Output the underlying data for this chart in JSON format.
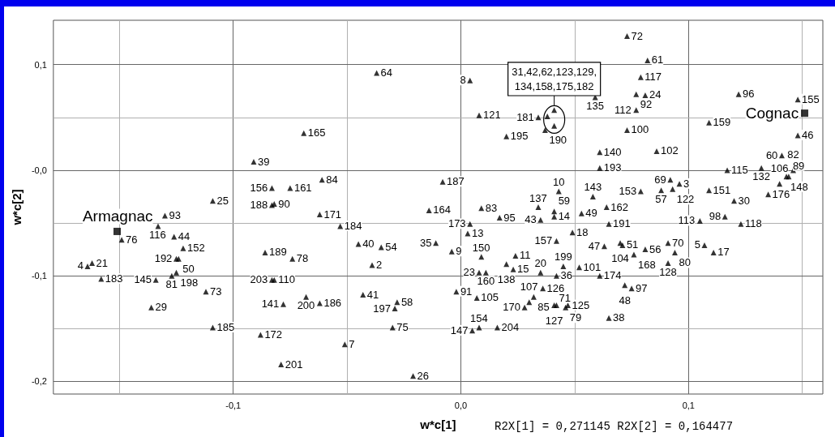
{
  "chart_data": {
    "type": "scatter",
    "xlabel": "w*c[1]",
    "ylabel": "w*c[2]",
    "annotations": [
      {
        "text": "31,42,62,123,129,\n134,158,175,182",
        "x": 0.041,
        "y": 0.048
      },
      "R2X[1] = 0,271145 R2X[2] = 0,164477",
      {
        "text": "Armagnac",
        "x": -0.151,
        "y": -0.058
      },
      {
        "text": "Cognac",
        "x": 0.151,
        "y": 0.054
      },
      {
        "text": "4",
        "x": -0.164,
        "y": -0.091
      },
      {
        "text": "21",
        "x": -0.162,
        "y": -0.088
      },
      {
        "text": "183",
        "x": -0.158,
        "y": -0.103
      },
      {
        "text": "76",
        "x": -0.149,
        "y": -0.066
      },
      {
        "text": "93",
        "x": -0.13,
        "y": -0.043
      },
      {
        "text": "116",
        "x": -0.133,
        "y": -0.053
      },
      {
        "text": "44",
        "x": -0.126,
        "y": -0.063
      },
      {
        "text": "152",
        "x": -0.122,
        "y": -0.074
      },
      {
        "text": "192",
        "x": -0.125,
        "y": -0.084
      },
      {
        "text": "50",
        "x": -0.124,
        "y": -0.084
      },
      {
        "text": "81",
        "x": -0.127,
        "y": -0.1
      },
      {
        "text": "198",
        "x": -0.125,
        "y": -0.097
      },
      {
        "text": "145",
        "x": -0.134,
        "y": -0.104
      },
      {
        "text": "29",
        "x": -0.136,
        "y": -0.13
      },
      {
        "text": "73",
        "x": -0.112,
        "y": -0.115
      },
      {
        "text": "185",
        "x": -0.109,
        "y": -0.149
      },
      {
        "text": "25",
        "x": -0.109,
        "y": -0.029
      },
      {
        "text": "39",
        "x": -0.091,
        "y": 0.008
      },
      {
        "text": "156",
        "x": -0.083,
        "y": -0.017
      },
      {
        "text": "161",
        "x": -0.075,
        "y": -0.017
      },
      {
        "text": "188",
        "x": -0.083,
        "y": -0.033
      },
      {
        "text": "90",
        "x": -0.082,
        "y": -0.032
      },
      {
        "text": "165",
        "x": -0.069,
        "y": 0.035
      },
      {
        "text": "84",
        "x": -0.061,
        "y": -0.009
      },
      {
        "text": "171",
        "x": -0.062,
        "y": -0.042
      },
      {
        "text": "184",
        "x": -0.053,
        "y": -0.053
      },
      {
        "text": "189",
        "x": -0.086,
        "y": -0.078
      },
      {
        "text": "78",
        "x": -0.074,
        "y": -0.084
      },
      {
        "text": "203",
        "x": -0.083,
        "y": -0.104
      },
      {
        "text": "110",
        "x": -0.082,
        "y": -0.104
      },
      {
        "text": "141",
        "x": -0.078,
        "y": -0.127
      },
      {
        "text": "200",
        "x": -0.068,
        "y": -0.12
      },
      {
        "text": "186",
        "x": -0.062,
        "y": -0.126
      },
      {
        "text": "172",
        "x": -0.088,
        "y": -0.156
      },
      {
        "text": "201",
        "x": -0.079,
        "y": -0.184
      },
      {
        "text": "40",
        "x": -0.045,
        "y": -0.07
      },
      {
        "text": "54",
        "x": -0.035,
        "y": -0.073
      },
      {
        "text": "2",
        "x": -0.039,
        "y": -0.09
      },
      {
        "text": "41",
        "x": -0.043,
        "y": -0.118
      },
      {
        "text": "58",
        "x": -0.028,
        "y": -0.125
      },
      {
        "text": "197",
        "x": -0.029,
        "y": -0.131
      },
      {
        "text": "75",
        "x": -0.03,
        "y": -0.149
      },
      {
        "text": "7",
        "x": -0.051,
        "y": -0.165
      },
      {
        "text": "26",
        "x": -0.021,
        "y": -0.195
      },
      {
        "text": "164",
        "x": -0.014,
        "y": -0.038
      },
      {
        "text": "187",
        "x": -0.008,
        "y": -0.011
      },
      {
        "text": "35",
        "x": -0.011,
        "y": -0.069
      },
      {
        "text": "9",
        "x": -0.004,
        "y": -0.077
      },
      {
        "text": "91",
        "x": -0.002,
        "y": -0.115
      },
      {
        "text": "64",
        "x": -0.037,
        "y": 0.092
      },
      {
        "text": "8",
        "x": 0.004,
        "y": 0.085
      },
      {
        "text": "121",
        "x": 0.008,
        "y": 0.052
      },
      {
        "text": "195",
        "x": 0.02,
        "y": 0.032
      },
      {
        "text": "181",
        "x": 0.034,
        "y": 0.05
      },
      {
        "text": "190",
        "x": 0.037,
        "y": 0.038
      },
      {
        "text": "13",
        "x": 0.003,
        "y": -0.06
      },
      {
        "text": "173",
        "x": 0.004,
        "y": -0.051
      },
      {
        "text": "95",
        "x": 0.017,
        "y": -0.045
      },
      {
        "text": "83",
        "x": 0.009,
        "y": -0.036
      },
      {
        "text": "150",
        "x": 0.009,
        "y": -0.082
      },
      {
        "text": "23",
        "x": 0.008,
        "y": -0.097
      },
      {
        "text": "160",
        "x": 0.011,
        "y": -0.097
      },
      {
        "text": "138",
        "x": 0.02,
        "y": -0.089
      },
      {
        "text": "11",
        "x": 0.024,
        "y": -0.081
      },
      {
        "text": "15",
        "x": 0.023,
        "y": -0.094
      },
      {
        "text": "105",
        "x": 0.007,
        "y": -0.121
      },
      {
        "text": "154",
        "x": 0.008,
        "y": -0.149
      },
      {
        "text": "147",
        "x": 0.005,
        "y": -0.152
      },
      {
        "text": "204",
        "x": 0.016,
        "y": -0.149
      },
      {
        "text": "107",
        "x": 0.03,
        "y": -0.125
      },
      {
        "text": "170",
        "x": 0.028,
        "y": -0.13
      },
      {
        "text": "85",
        "x": 0.032,
        "y": -0.12
      },
      {
        "text": "126",
        "x": 0.036,
        "y": -0.112
      },
      {
        "text": "127",
        "x": 0.041,
        "y": -0.128
      },
      {
        "text": "71",
        "x": 0.042,
        "y": -0.128
      },
      {
        "text": "79",
        "x": 0.046,
        "y": -0.13
      },
      {
        "text": "125",
        "x": 0.047,
        "y": -0.128
      },
      {
        "text": "20",
        "x": 0.035,
        "y": -0.097
      },
      {
        "text": "199",
        "x": 0.045,
        "y": -0.091
      },
      {
        "text": "36",
        "x": 0.042,
        "y": -0.1
      },
      {
        "text": "157",
        "x": 0.042,
        "y": -0.067
      },
      {
        "text": "43",
        "x": 0.035,
        "y": -0.047
      },
      {
        "text": "14",
        "x": 0.041,
        "y": -0.044
      },
      {
        "text": "137",
        "x": 0.034,
        "y": -0.035
      },
      {
        "text": "59",
        "x": 0.041,
        "y": -0.039
      },
      {
        "text": "10",
        "x": 0.043,
        "y": -0.02
      },
      {
        "text": "18",
        "x": 0.049,
        "y": -0.059
      },
      {
        "text": "49",
        "x": 0.053,
        "y": -0.041
      },
      {
        "text": "162",
        "x": 0.064,
        "y": -0.035
      },
      {
        "text": "143",
        "x": 0.058,
        "y": -0.025
      },
      {
        "text": "191",
        "x": 0.065,
        "y": -0.051
      },
      {
        "text": "104",
        "x": 0.07,
        "y": -0.069
      },
      {
        "text": "51",
        "x": 0.071,
        "y": -0.071
      },
      {
        "text": "47",
        "x": 0.063,
        "y": -0.072
      },
      {
        "text": "101",
        "x": 0.052,
        "y": -0.092
      },
      {
        "text": "174",
        "x": 0.061,
        "y": -0.1
      },
      {
        "text": "168",
        "x": 0.076,
        "y": -0.08
      },
      {
        "text": "56",
        "x": 0.081,
        "y": -0.075
      },
      {
        "text": "70",
        "x": 0.091,
        "y": -0.069
      },
      {
        "text": "80",
        "x": 0.094,
        "y": -0.078
      },
      {
        "text": "128",
        "x": 0.091,
        "y": -0.088
      },
      {
        "text": "48",
        "x": 0.072,
        "y": -0.109
      },
      {
        "text": "97",
        "x": 0.075,
        "y": -0.112
      },
      {
        "text": "38",
        "x": 0.065,
        "y": -0.14
      },
      {
        "text": "113",
        "x": 0.105,
        "y": -0.048
      },
      {
        "text": "98",
        "x": 0.116,
        "y": -0.044
      },
      {
        "text": "118",
        "x": 0.123,
        "y": -0.051
      },
      {
        "text": "5",
        "x": 0.107,
        "y": -0.071
      },
      {
        "text": "17",
        "x": 0.111,
        "y": -0.078
      },
      {
        "text": "72",
        "x": 0.073,
        "y": 0.127
      },
      {
        "text": "61",
        "x": 0.082,
        "y": 0.104
      },
      {
        "text": "117",
        "x": 0.079,
        "y": 0.088
      },
      {
        "text": "135",
        "x": 0.059,
        "y": 0.069
      },
      {
        "text": "92",
        "x": 0.077,
        "y": 0.072
      },
      {
        "text": "24",
        "x": 0.081,
        "y": 0.071
      },
      {
        "text": "112",
        "x": 0.077,
        "y": 0.057
      },
      {
        "text": "100",
        "x": 0.073,
        "y": 0.038
      },
      {
        "text": "140",
        "x": 0.061,
        "y": 0.017
      },
      {
        "text": "102",
        "x": 0.086,
        "y": 0.018
      },
      {
        "text": "193",
        "x": 0.061,
        "y": 0.002
      },
      {
        "text": "69",
        "x": 0.092,
        "y": -0.009
      },
      {
        "text": "3",
        "x": 0.096,
        "y": -0.013
      },
      {
        "text": "122",
        "x": 0.093,
        "y": -0.018
      },
      {
        "text": "153",
        "x": 0.079,
        "y": -0.02
      },
      {
        "text": "57",
        "x": 0.088,
        "y": -0.019
      },
      {
        "text": "151",
        "x": 0.109,
        "y": -0.019
      },
      {
        "text": "30",
        "x": 0.12,
        "y": -0.029
      },
      {
        "text": "115",
        "x": 0.117,
        "y": 0
      },
      {
        "text": "132",
        "x": 0.132,
        "y": 0.002
      },
      {
        "text": "176",
        "x": 0.135,
        "y": -0.023
      },
      {
        "text": "106",
        "x": 0.14,
        "y": -0.013
      },
      {
        "text": "148",
        "x": 0.143,
        "y": -0.006
      },
      {
        "text": "89",
        "x": 0.144,
        "y": -0.006
      },
      {
        "text": "82",
        "x": 0.146,
        "y": 0
      },
      {
        "text": "60",
        "x": 0.141,
        "y": 0.014
      },
      {
        "text": "46",
        "x": 0.148,
        "y": 0.033
      },
      {
        "text": "155",
        "x": 0.148,
        "y": 0.067
      },
      {
        "text": "96",
        "x": 0.122,
        "y": 0.072
      },
      {
        "text": "159",
        "x": 0.109,
        "y": 0.045
      }
    ],
    "xlim": [
      -0.179,
      0.159
    ],
    "ylim": [
      -0.212,
      0.142
    ],
    "xticks": [
      {
        "value": -0.15,
        "label": null
      },
      {
        "value": -0.1,
        "label": "-0,1"
      },
      {
        "value": -0.05,
        "label": null
      },
      {
        "value": 0,
        "label": "0,0"
      },
      {
        "value": 0.05,
        "label": null
      },
      {
        "value": 0.1,
        "label": "0,1"
      },
      {
        "value": 0.15,
        "label": null
      }
    ],
    "yticks": [
      {
        "value": -0.2,
        "label": "-0,2"
      },
      {
        "value": -0.15,
        "label": null
      },
      {
        "value": -0.1,
        "label": "-0,1"
      },
      {
        "value": -0.05,
        "label": null
      },
      {
        "value": 0,
        "label": "-0,0"
      },
      {
        "value": 0.05,
        "label": null
      },
      {
        "value": 0.1,
        "label": "0,1"
      }
    ],
    "grid": true,
    "marker": "triangle",
    "series": [
      {
        "color": "#000000",
        "x": [
          -0.164,
          -0.162,
          -0.158,
          -0.149,
          -0.13,
          -0.133,
          -0.126,
          -0.122,
          -0.125,
          -0.124,
          -0.127,
          -0.125,
          -0.134,
          -0.136,
          -0.112,
          -0.109,
          -0.109,
          -0.091,
          -0.083,
          -0.075,
          -0.083,
          -0.082,
          -0.069,
          -0.061,
          -0.062,
          -0.053,
          -0.086,
          -0.074,
          -0.083,
          -0.082,
          -0.078,
          -0.068,
          -0.062,
          -0.088,
          -0.079,
          -0.045,
          -0.035,
          -0.039,
          -0.043,
          -0.028,
          -0.029,
          -0.03,
          -0.051,
          -0.021,
          -0.014,
          -0.008,
          -0.011,
          -0.004,
          -0.002,
          -0.037,
          0.004,
          0.008,
          0.02,
          0.034,
          0.037,
          0.038,
          0.041,
          0.041,
          0.003,
          0.004,
          0.017,
          0.009,
          0.009,
          0.008,
          0.011,
          0.02,
          0.024,
          0.023,
          0.007,
          0.008,
          0.005,
          0.016,
          0.03,
          0.028,
          0.032,
          0.036,
          0.041,
          0.042,
          0.046,
          0.047,
          0.035,
          0.045,
          0.042,
          0.042,
          0.035,
          0.041,
          0.034,
          0.041,
          0.043,
          0.049,
          0.053,
          0.064,
          0.058,
          0.065,
          0.07,
          0.071,
          0.063,
          0.052,
          0.061,
          0.076,
          0.081,
          0.091,
          0.094,
          0.091,
          0.072,
          0.075,
          0.065,
          0.105,
          0.116,
          0.123,
          0.107,
          0.111,
          0.073,
          0.082,
          0.079,
          0.059,
          0.077,
          0.081,
          0.077,
          0.073,
          0.061,
          0.086,
          0.061,
          0.092,
          0.096,
          0.093,
          0.079,
          0.088,
          0.109,
          0.12,
          0.117,
          0.132,
          0.135,
          0.14,
          0.143,
          0.144,
          0.146,
          0.141,
          0.148,
          0.148,
          0.122,
          0.109
        ],
        "values": [
          -0.091,
          -0.088,
          -0.103,
          -0.066,
          -0.043,
          -0.053,
          -0.063,
          -0.074,
          -0.084,
          -0.084,
          -0.1,
          -0.097,
          -0.104,
          -0.13,
          -0.115,
          -0.149,
          -0.029,
          0.008,
          -0.017,
          -0.017,
          -0.033,
          -0.032,
          0.035,
          -0.009,
          -0.042,
          -0.053,
          -0.078,
          -0.084,
          -0.104,
          -0.104,
          -0.127,
          -0.12,
          -0.126,
          -0.156,
          -0.184,
          -0.07,
          -0.073,
          -0.09,
          -0.118,
          -0.125,
          -0.131,
          -0.149,
          -0.165,
          -0.195,
          -0.038,
          -0.011,
          -0.069,
          -0.077,
          -0.115,
          0.092,
          0.085,
          0.052,
          0.032,
          0.05,
          0.038,
          0.051,
          0.057,
          0.042,
          -0.06,
          -0.051,
          -0.045,
          -0.036,
          -0.082,
          -0.097,
          -0.097,
          -0.089,
          -0.081,
          -0.094,
          -0.121,
          -0.149,
          -0.152,
          -0.149,
          -0.125,
          -0.13,
          -0.12,
          -0.112,
          -0.128,
          -0.128,
          -0.13,
          -0.128,
          -0.097,
          -0.091,
          -0.1,
          -0.067,
          -0.047,
          -0.044,
          -0.035,
          -0.039,
          -0.02,
          -0.059,
          -0.041,
          -0.035,
          -0.025,
          -0.051,
          -0.069,
          -0.071,
          -0.072,
          -0.092,
          -0.1,
          -0.08,
          -0.075,
          -0.069,
          -0.078,
          -0.088,
          -0.109,
          -0.112,
          -0.14,
          -0.048,
          -0.044,
          -0.051,
          -0.071,
          -0.078,
          0.127,
          0.104,
          0.088,
          0.069,
          0.072,
          0.071,
          0.057,
          0.038,
          0.017,
          0.018,
          0.002,
          -0.009,
          -0.013,
          -0.018,
          -0.02,
          -0.019,
          -0.019,
          -0.029,
          0,
          0.002,
          -0.023,
          -0.013,
          -0.006,
          -0.006,
          0,
          0.014,
          0.033,
          0.067,
          0.072,
          0.045
        ]
      },
      {
        "color": "#000000",
        "marker": "square",
        "x": [
          -0.151,
          0.151
        ],
        "values": [
          -0.058,
          0.054
        ]
      }
    ]
  }
}
